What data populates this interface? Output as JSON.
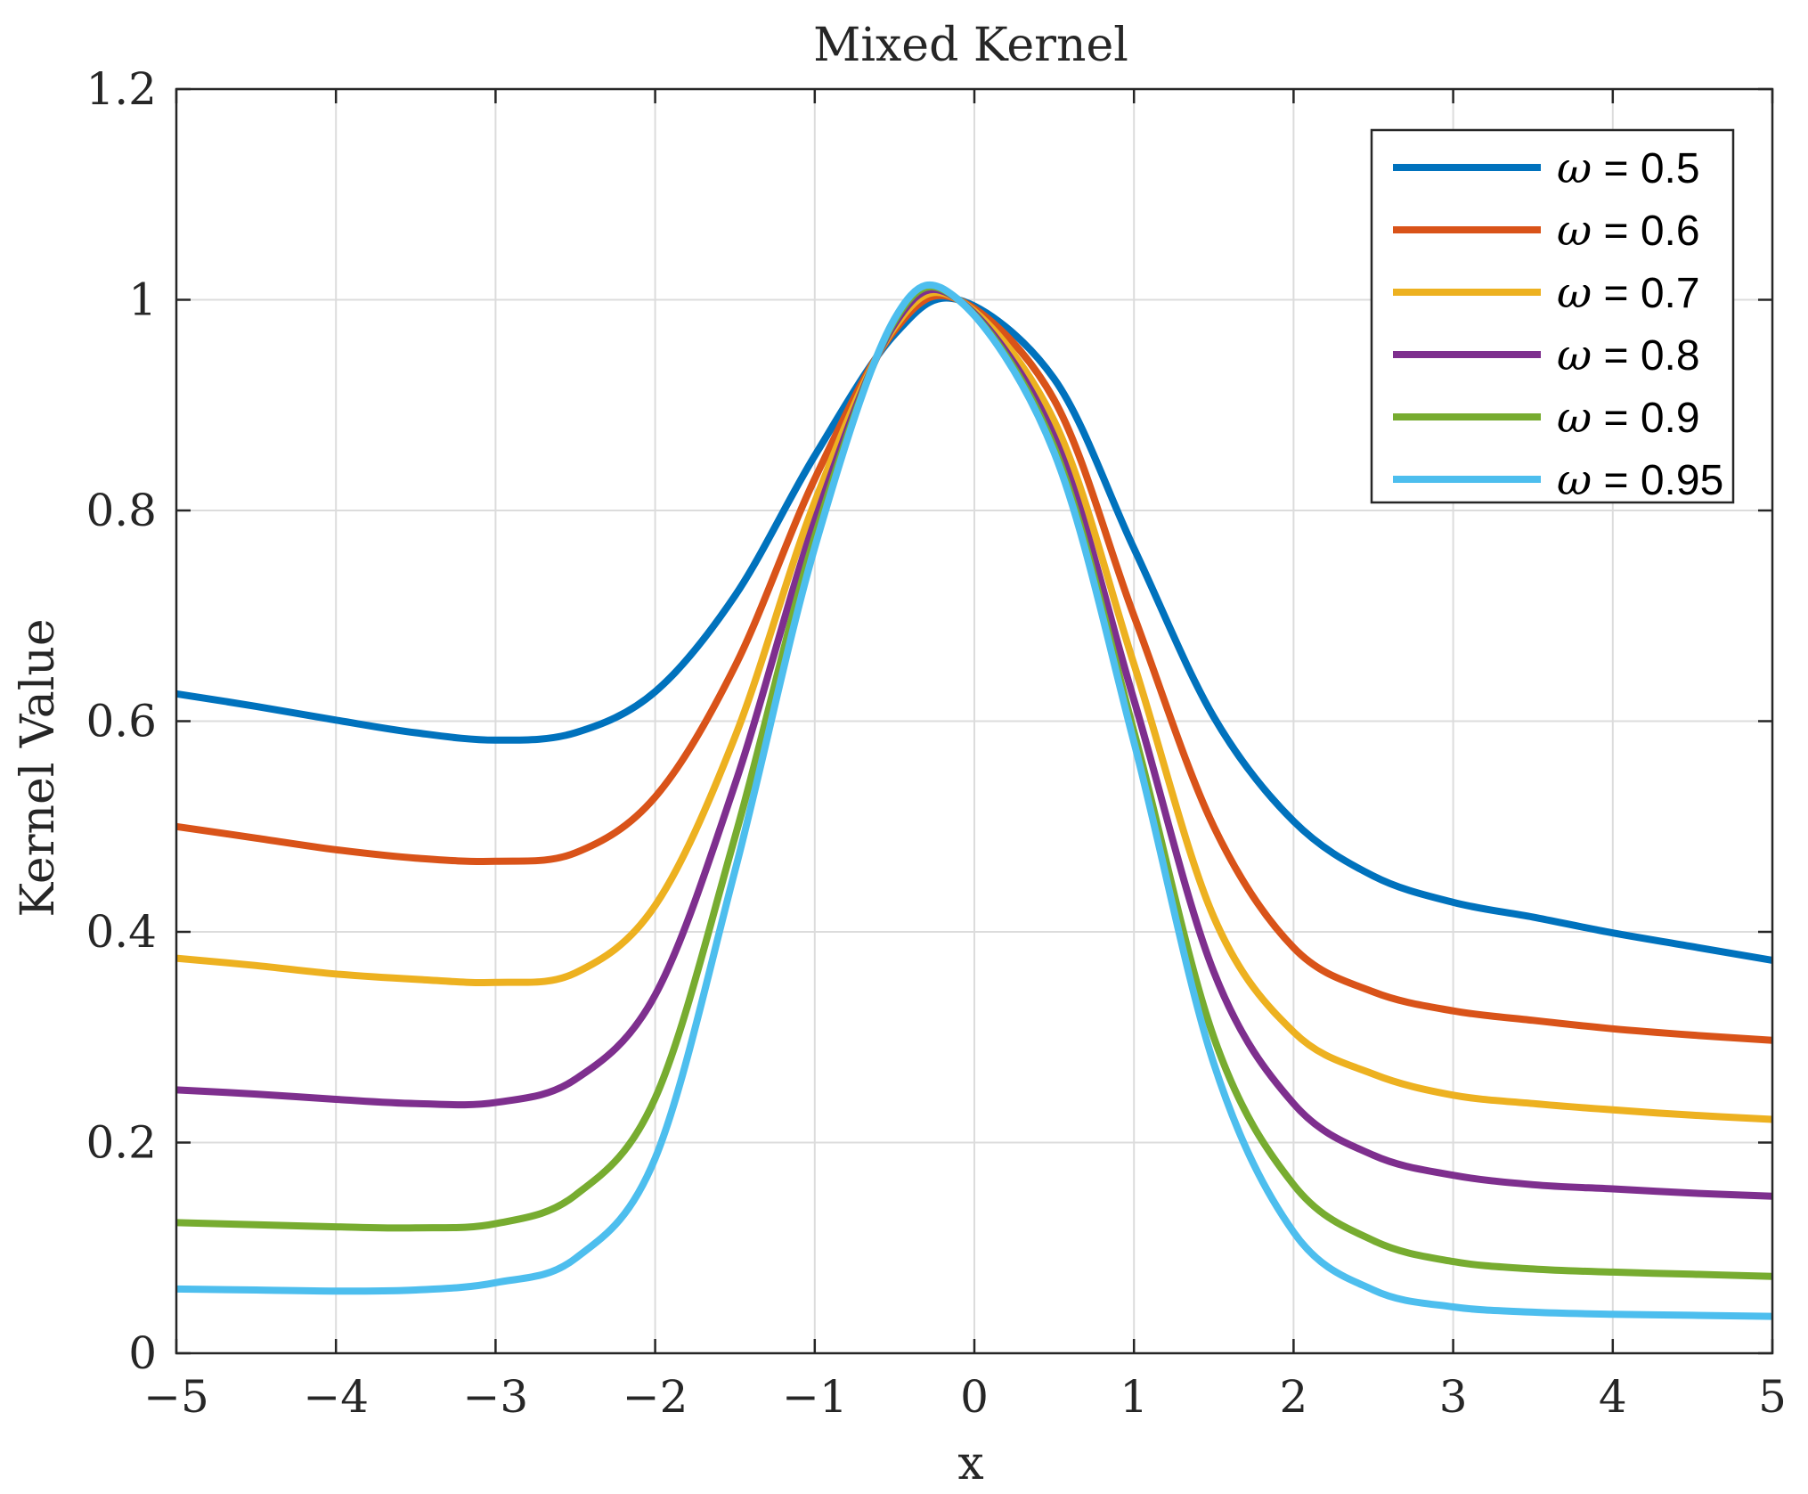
{
  "chart_data": {
    "type": "line",
    "title": "Mixed Kernel",
    "xlabel": "x",
    "ylabel": "Kernel Value",
    "xlim": [
      -5,
      5
    ],
    "ylim": [
      0,
      1.2
    ],
    "grid": true,
    "legend_position": "top-right",
    "x_ticks": [
      -5,
      -4,
      -3,
      -2,
      -1,
      0,
      1,
      2,
      3,
      4,
      5
    ],
    "x_tick_labels": [
      "−5",
      "−4",
      "−3",
      "−2",
      "−1",
      "0",
      "1",
      "2",
      "3",
      "4",
      "5"
    ],
    "y_ticks": [
      0,
      0.2,
      0.4,
      0.6,
      0.8,
      1,
      1.2
    ],
    "y_tick_labels": [
      "0",
      "0.2",
      "0.4",
      "0.6",
      "0.8",
      "1",
      "1.2"
    ],
    "x": [
      -5,
      -4.5,
      -4,
      -3.5,
      -3,
      -2.5,
      -2,
      -1.5,
      -1,
      -0.5,
      -0.1,
      0.5,
      1,
      1.5,
      2,
      2.5,
      3,
      3.5,
      4,
      4.5,
      5
    ],
    "series": [
      {
        "name": "ω = 0.5",
        "omega": "ω",
        "value_label": " = 0.5",
        "color": "#0072BD",
        "values": [
          0.626,
          0.614,
          0.601,
          0.589,
          0.582,
          0.589,
          0.628,
          0.719,
          0.852,
          0.967,
          1.0,
          0.925,
          0.764,
          0.604,
          0.505,
          0.453,
          0.428,
          0.414,
          0.399,
          0.386,
          0.373
        ]
      },
      {
        "name": "ω = 0.6",
        "omega": "ω",
        "value_label": " = 0.6",
        "color": "#D95319",
        "values": [
          0.5,
          0.489,
          0.478,
          0.47,
          0.467,
          0.475,
          0.528,
          0.652,
          0.83,
          0.971,
          1.0,
          0.905,
          0.7,
          0.5,
          0.385,
          0.343,
          0.325,
          0.316,
          0.308,
          0.302,
          0.297
        ]
      },
      {
        "name": "ω = 0.7",
        "omega": "ω",
        "value_label": " = 0.7",
        "color": "#EDB120",
        "values": [
          0.375,
          0.368,
          0.36,
          0.355,
          0.352,
          0.361,
          0.425,
          0.585,
          0.808,
          0.974,
          1.0,
          0.885,
          0.654,
          0.414,
          0.305,
          0.265,
          0.245,
          0.237,
          0.231,
          0.226,
          0.222
        ]
      },
      {
        "name": "ω = 0.8",
        "omega": "ω",
        "value_label": " = 0.8",
        "color": "#7E2F8E",
        "values": [
          0.25,
          0.246,
          0.241,
          0.237,
          0.238,
          0.26,
          0.34,
          0.54,
          0.79,
          0.977,
          1.0,
          0.87,
          0.62,
          0.362,
          0.237,
          0.188,
          0.169,
          0.16,
          0.156,
          0.152,
          0.149
        ]
      },
      {
        "name": "ω = 0.9",
        "omega": "ω",
        "value_label": " = 0.9",
        "color": "#77AC30",
        "values": [
          0.124,
          0.122,
          0.12,
          0.119,
          0.123,
          0.15,
          0.242,
          0.49,
          0.775,
          0.98,
          1.0,
          0.86,
          0.59,
          0.3,
          0.16,
          0.107,
          0.087,
          0.08,
          0.077,
          0.075,
          0.073
        ]
      },
      {
        "name": "ω = 0.95",
        "omega": "ω",
        "value_label": " = 0.95",
        "color": "#4DBEEE",
        "values": [
          0.061,
          0.06,
          0.059,
          0.06,
          0.067,
          0.09,
          0.185,
          0.458,
          0.765,
          0.982,
          1.0,
          0.855,
          0.58,
          0.275,
          0.115,
          0.06,
          0.044,
          0.039,
          0.037,
          0.036,
          0.035
        ]
      }
    ]
  }
}
